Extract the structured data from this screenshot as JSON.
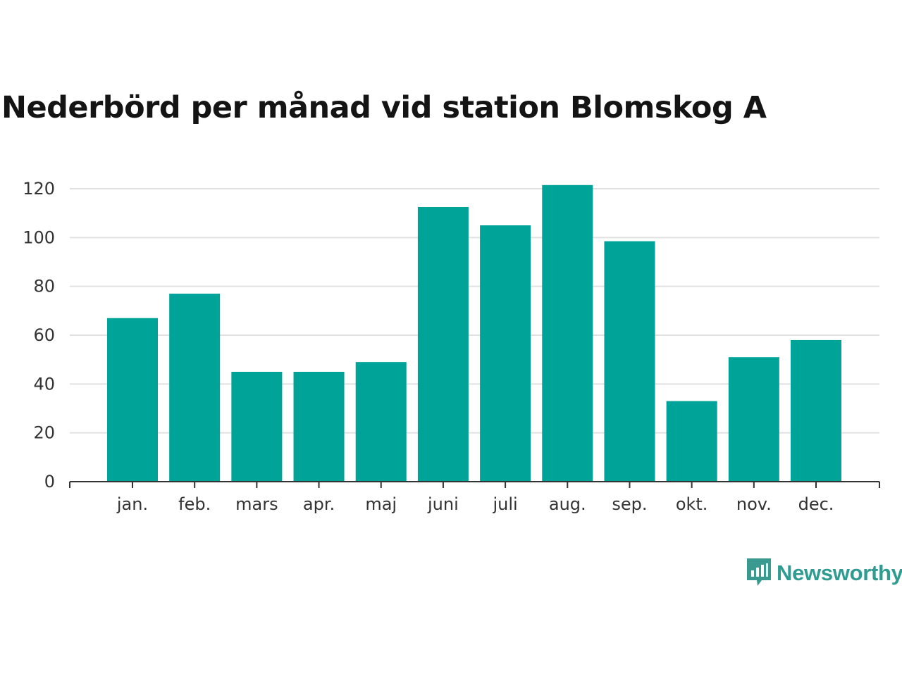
{
  "title": "Nederbörd per månad vid station Blomskog A",
  "brand": {
    "name": "Newsworthy",
    "icon": "newsworthy-logo-icon",
    "color": "#3a9a90"
  },
  "chart_data": {
    "type": "bar",
    "categories": [
      "jan.",
      "feb.",
      "mars",
      "apr.",
      "maj",
      "juni",
      "juli",
      "aug.",
      "sep.",
      "okt.",
      "nov.",
      "dec."
    ],
    "values": [
      67,
      77,
      45,
      45,
      49,
      112.5,
      105,
      121.5,
      98.5,
      33,
      51,
      58
    ],
    "ylim": [
      0,
      120
    ],
    "yticks": [
      0,
      20,
      40,
      60,
      80,
      100,
      120
    ],
    "xlabel": "",
    "ylabel": "",
    "grid": true,
    "bar_color": "#00a398",
    "grid_color": "#e0e0e0",
    "axis_color": "#333333"
  }
}
